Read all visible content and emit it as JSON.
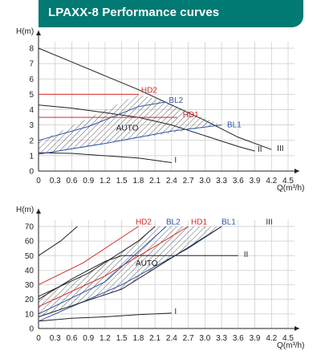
{
  "header": {
    "title": "LPAXX-8 Performance curves",
    "background": "#007a73"
  },
  "colors": {
    "black": "#222222",
    "red": "#d42a2a",
    "blue": "#2e56a6",
    "grid": "#c9c9c9",
    "hatch": "#333333"
  },
  "chart_data": [
    {
      "type": "line",
      "title": "",
      "ylabel": "H(m)",
      "xlabel": "Q(m³/h)",
      "xlim": [
        0,
        4.5
      ],
      "ylim": [
        0,
        8
      ],
      "xticks": [
        "0",
        "0.3",
        "0.6",
        "0.9",
        "1.2",
        "1.5",
        "1.8",
        "2.1",
        "2.4",
        "2.7",
        "3.0",
        "3.3",
        "3.6",
        "3.9",
        "4.2",
        "4.5"
      ],
      "yticks": [
        "0",
        "1",
        "2",
        "3",
        "4",
        "5",
        "6",
        "7",
        "8"
      ],
      "series": [
        {
          "name": "III",
          "color": "black",
          "points": [
            [
              0,
              8.0
            ],
            [
              0.6,
              7.1
            ],
            [
              1.2,
              6.2
            ],
            [
              1.8,
              5.3
            ],
            [
              2.4,
              4.3
            ],
            [
              3.0,
              3.3
            ],
            [
              3.6,
              2.2
            ],
            [
              4.2,
              1.4
            ]
          ]
        },
        {
          "name": "II",
          "color": "black",
          "points": [
            [
              0,
              4.3
            ],
            [
              0.6,
              4.1
            ],
            [
              1.2,
              3.8
            ],
            [
              1.8,
              3.5
            ],
            [
              2.4,
              3.0
            ],
            [
              3.0,
              2.3
            ],
            [
              3.6,
              1.6
            ],
            [
              3.9,
              1.3
            ]
          ]
        },
        {
          "name": "I",
          "color": "black",
          "points": [
            [
              0,
              1.2
            ],
            [
              0.6,
              1.15
            ],
            [
              1.2,
              1.0
            ],
            [
              1.8,
              0.85
            ],
            [
              2.4,
              0.55
            ]
          ]
        },
        {
          "name": "HD2",
          "color": "red",
          "points": [
            [
              0,
              5.0
            ],
            [
              1.8,
              5.0
            ]
          ]
        },
        {
          "name": "HD1",
          "color": "red",
          "points": [
            [
              0,
              3.5
            ],
            [
              2.5,
              3.5
            ]
          ]
        },
        {
          "name": "BL2",
          "color": "blue",
          "points": [
            [
              0,
              2.0
            ],
            [
              0.9,
              2.9
            ],
            [
              1.8,
              4.2
            ],
            [
              2.3,
              4.5
            ]
          ]
        },
        {
          "name": "BL1",
          "color": "blue",
          "points": [
            [
              0,
              1.1
            ],
            [
              1.2,
              1.8
            ],
            [
              2.4,
              2.6
            ],
            [
              3.3,
              3.0
            ]
          ]
        }
      ],
      "auto_region": [
        [
          0,
          1.9
        ],
        [
          1.8,
          5.0
        ],
        [
          2.3,
          4.5
        ],
        [
          3.3,
          3.0
        ],
        [
          0,
          1.1
        ]
      ],
      "labels": [
        {
          "text": "HD2",
          "color": "red",
          "at": [
            1.85,
            5.1
          ]
        },
        {
          "text": "BL2",
          "color": "blue",
          "at": [
            2.35,
            4.45
          ]
        },
        {
          "text": "HD1",
          "color": "red",
          "at": [
            2.6,
            3.5
          ]
        },
        {
          "text": "BL1",
          "color": "blue",
          "at": [
            3.4,
            2.85
          ]
        },
        {
          "text": "AUTO",
          "color": "black",
          "at": [
            1.4,
            2.65
          ]
        },
        {
          "text": "III",
          "color": "black",
          "at": [
            4.3,
            1.3
          ]
        },
        {
          "text": "II",
          "color": "black",
          "at": [
            3.95,
            1.25
          ]
        },
        {
          "text": "I",
          "color": "black",
          "at": [
            2.45,
            0.55
          ]
        }
      ]
    },
    {
      "type": "line",
      "title": "",
      "ylabel": "H(m)",
      "xlabel": "Q(m³/h)",
      "xlim": [
        0,
        4.5
      ],
      "ylim": [
        0,
        70
      ],
      "xticks": [
        "0",
        "0.3",
        "0.6",
        "0.9",
        "1.2",
        "1.5",
        "1.8",
        "2.1",
        "2.4",
        "2.7",
        "3.0",
        "3.3",
        "3.6",
        "3.9",
        "4.2",
        "4.5"
      ],
      "yticks": [
        "0",
        "10",
        "20",
        "30",
        "40",
        "50",
        "60",
        "70"
      ],
      "series": [
        {
          "name": "III",
          "color": "black",
          "points": [
            [
              0,
              50
            ],
            [
              0.4,
              60
            ],
            [
              0.7,
              70
            ]
          ]
        },
        {
          "name": "II",
          "color": "black",
          "points": [
            [
              0,
              20
            ],
            [
              0.6,
              34
            ],
            [
              1.2,
              46
            ],
            [
              1.5,
              50
            ],
            [
              3.6,
              50
            ]
          ]
        },
        {
          "name": "I",
          "color": "black",
          "points": [
            [
              0,
              5
            ],
            [
              0.6,
              7
            ],
            [
              1.2,
              8
            ],
            [
              1.8,
              9.5
            ],
            [
              2.4,
              10.5
            ]
          ]
        },
        {
          "name": "HD2",
          "color": "red",
          "points": [
            [
              0,
              30
            ],
            [
              0.8,
              45
            ],
            [
              1.8,
              70
            ]
          ]
        },
        {
          "name": "HD1",
          "color": "red",
          "points": [
            [
              0,
              15
            ],
            [
              1.2,
              36
            ],
            [
              2.7,
              70
            ]
          ]
        },
        {
          "name": "BL2",
          "color": "blue",
          "points": [
            [
              0,
              10
            ],
            [
              1.2,
              32
            ],
            [
              2.3,
              70
            ]
          ]
        },
        {
          "name": "BL1",
          "color": "blue",
          "points": [
            [
              0,
              5
            ],
            [
              1.5,
              30
            ],
            [
              2.7,
              55
            ],
            [
              3.3,
              70
            ]
          ]
        },
        {
          "name": "AUTO-lower",
          "color": "black",
          "points": [
            [
              0,
              8
            ],
            [
              1.5,
              27
            ],
            [
              3.3,
              70
            ]
          ]
        },
        {
          "name": "AUTO-upper",
          "color": "black",
          "points": [
            [
              0,
              22
            ],
            [
              0.9,
              38
            ],
            [
              1.8,
              60
            ],
            [
              2.1,
              70
            ]
          ]
        }
      ],
      "auto_region": [
        [
          0,
          22
        ],
        [
          0.9,
          38
        ],
        [
          1.8,
          60
        ],
        [
          2.1,
          70
        ],
        [
          3.3,
          70
        ],
        [
          1.5,
          27
        ],
        [
          0,
          8
        ]
      ],
      "labels": [
        {
          "text": "HD2",
          "color": "red",
          "at": [
            1.75,
            71.5
          ]
        },
        {
          "text": "BL2",
          "color": "blue",
          "at": [
            2.3,
            71.5
          ]
        },
        {
          "text": "HD1",
          "color": "red",
          "at": [
            2.75,
            71.5
          ]
        },
        {
          "text": "BL1",
          "color": "blue",
          "at": [
            3.3,
            71.5
          ]
        },
        {
          "text": "III",
          "color": "black",
          "at": [
            4.1,
            71.5
          ]
        },
        {
          "text": "II",
          "color": "black",
          "at": [
            3.7,
            49
          ]
        },
        {
          "text": "AUTO",
          "color": "black",
          "at": [
            1.75,
            43
          ]
        },
        {
          "text": "I",
          "color": "black",
          "at": [
            2.45,
            10
          ]
        }
      ]
    }
  ]
}
